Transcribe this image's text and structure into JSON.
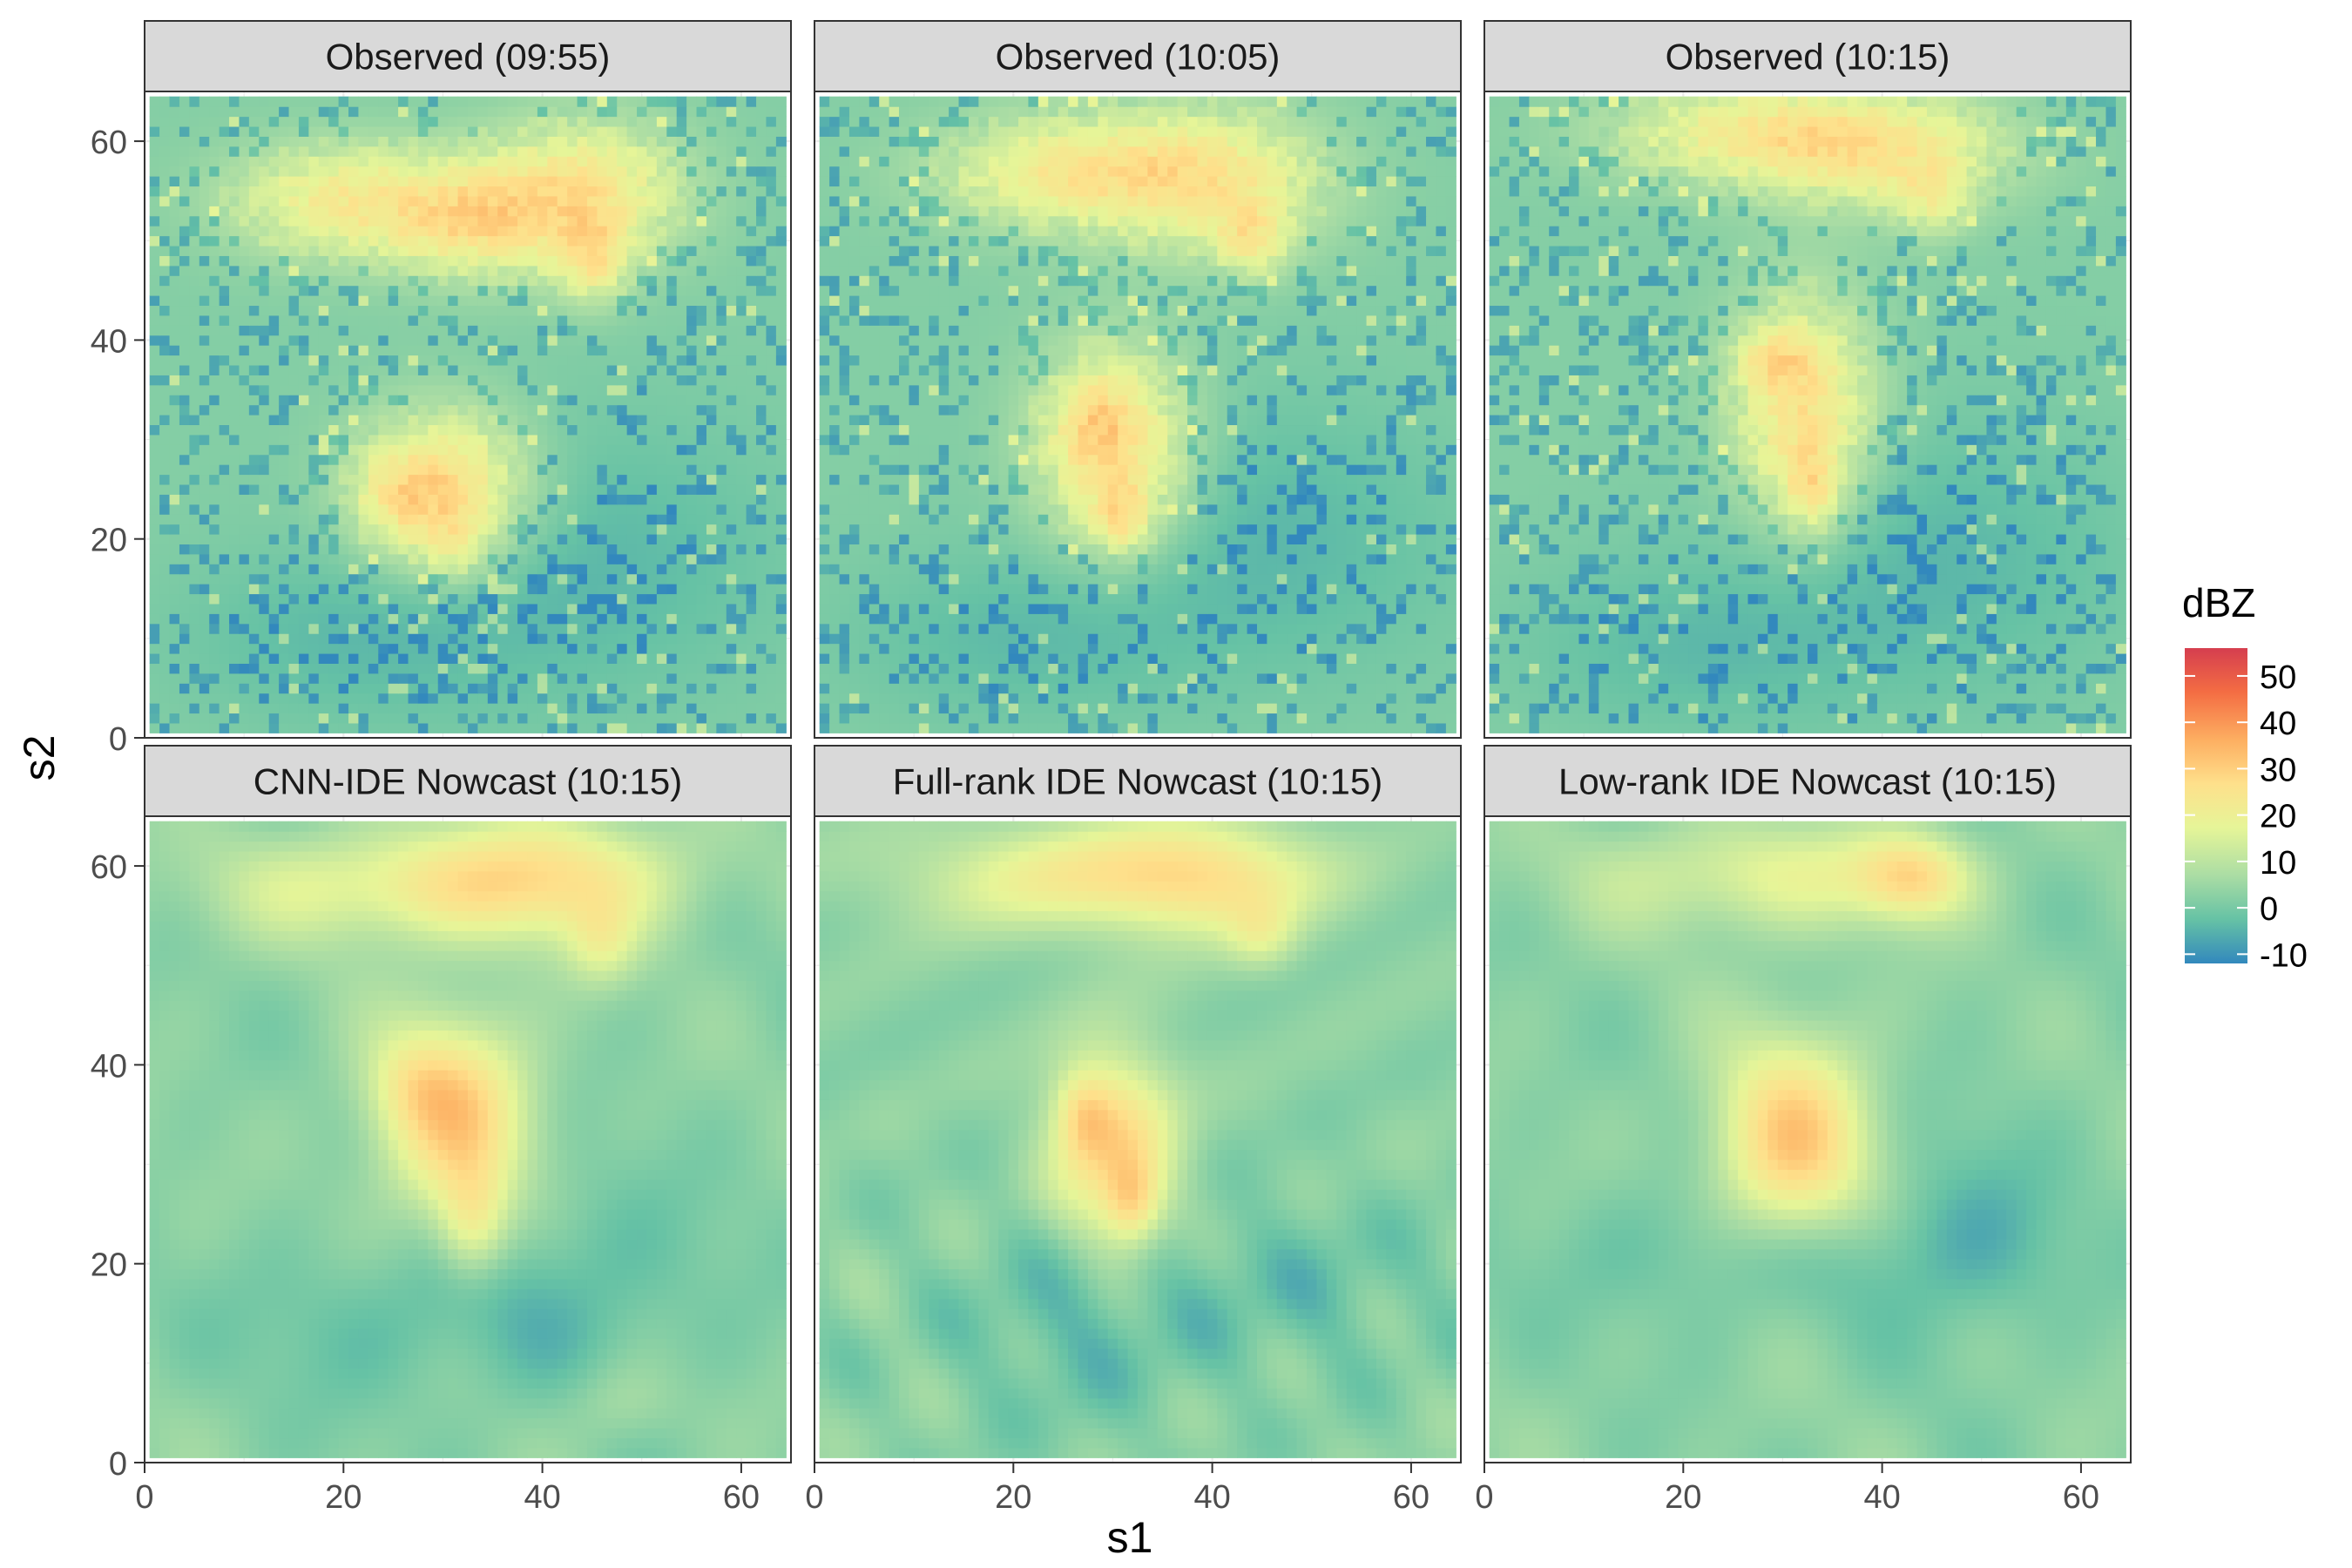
{
  "chart_data": {
    "type": "heatmap",
    "xlabel": "s1",
    "ylabel": "s2",
    "x_ticks": [
      0,
      20,
      40,
      60
    ],
    "y_ticks": [
      0,
      20,
      40,
      60
    ],
    "xlim": [
      0,
      65
    ],
    "ylim": [
      0,
      65
    ],
    "grid_size": 64,
    "grid": true,
    "legend": {
      "title": "dBZ",
      "ticks": [
        50,
        40,
        30,
        20,
        10,
        0,
        -10
      ],
      "range": [
        -12,
        56
      ],
      "placement": "right",
      "colors": [
        "#3288bd",
        "#66c2a5",
        "#abdda4",
        "#e6f598",
        "#fee08b",
        "#fdae61",
        "#f46d43",
        "#d53e4f"
      ]
    },
    "panels": [
      {
        "title": "Observed (09:55)",
        "kind": "observed",
        "background": 2,
        "blobs": [
          {
            "x": 30,
            "y": 25,
            "sx": 6,
            "sy": 5.5,
            "amp": 28
          },
          {
            "x": 25,
            "y": 24,
            "sx": 3,
            "sy": 3,
            "amp": 8
          },
          {
            "x": 31,
            "y": 19,
            "sx": 2.5,
            "sy": 2.5,
            "amp": 8
          },
          {
            "x": 20,
            "y": 54,
            "sx": 8,
            "sy": 4,
            "amp": 20
          },
          {
            "x": 33,
            "y": 52,
            "sx": 6,
            "sy": 4,
            "amp": 18
          },
          {
            "x": 44,
            "y": 55,
            "sx": 7,
            "sy": 5,
            "amp": 22
          },
          {
            "x": 45,
            "y": 48,
            "sx": 2.5,
            "sy": 3,
            "amp": 16
          },
          {
            "x": 44,
            "y": 18,
            "sx": 14,
            "sy": 10,
            "amp": -6
          },
          {
            "x": 20,
            "y": 10,
            "sx": 12,
            "sy": 6,
            "amp": -5
          }
        ]
      },
      {
        "title": "Observed (10:05)",
        "kind": "observed",
        "background": 2,
        "blobs": [
          {
            "x": 30,
            "y": 29,
            "sx": 5.5,
            "sy": 7,
            "amp": 26
          },
          {
            "x": 28,
            "y": 32,
            "sx": 2.5,
            "sy": 3,
            "amp": 8
          },
          {
            "x": 31,
            "y": 22,
            "sx": 2,
            "sy": 2.5,
            "amp": 14
          },
          {
            "x": 25,
            "y": 57,
            "sx": 9,
            "sy": 4,
            "amp": 19
          },
          {
            "x": 40,
            "y": 56,
            "sx": 8,
            "sy": 5,
            "amp": 20
          },
          {
            "x": 44,
            "y": 50,
            "sx": 2.5,
            "sy": 2.5,
            "amp": 14
          },
          {
            "x": 45,
            "y": 20,
            "sx": 14,
            "sy": 10,
            "amp": -6
          },
          {
            "x": 20,
            "y": 10,
            "sx": 12,
            "sy": 6,
            "amp": -5
          }
        ]
      },
      {
        "title": "Observed (10:15)",
        "kind": "observed",
        "background": 2,
        "blobs": [
          {
            "x": 32,
            "y": 33,
            "sx": 5,
            "sy": 8,
            "amp": 24
          },
          {
            "x": 29,
            "y": 38,
            "sx": 2.5,
            "sy": 2,
            "amp": 12
          },
          {
            "x": 33,
            "y": 25,
            "sx": 2,
            "sy": 3,
            "amp": 14
          },
          {
            "x": 26,
            "y": 61,
            "sx": 10,
            "sy": 3.5,
            "amp": 17
          },
          {
            "x": 40,
            "y": 59,
            "sx": 9,
            "sy": 4,
            "amp": 19
          },
          {
            "x": 45,
            "y": 54,
            "sx": 2.5,
            "sy": 2.5,
            "amp": 12
          },
          {
            "x": 45,
            "y": 18,
            "sx": 14,
            "sy": 10,
            "amp": -6
          },
          {
            "x": 20,
            "y": 9,
            "sx": 12,
            "sy": 6,
            "amp": -5
          }
        ]
      },
      {
        "title": "CNN-IDE Nowcast (10:15)",
        "kind": "smooth",
        "background": 3,
        "blobs": [
          {
            "x": 31,
            "y": 35,
            "sx": 5.5,
            "sy": 7,
            "amp": 27
          },
          {
            "x": 33,
            "y": 24,
            "sx": 2.5,
            "sy": 4,
            "amp": 16
          },
          {
            "x": 27,
            "y": 38,
            "sx": 3,
            "sy": 3,
            "amp": 6
          },
          {
            "x": 25,
            "y": 58,
            "sx": 12,
            "sy": 4,
            "amp": 16
          },
          {
            "x": 42,
            "y": 59,
            "sx": 9,
            "sy": 4.5,
            "amp": 18
          },
          {
            "x": 46,
            "y": 52,
            "sx": 2.5,
            "sy": 3,
            "amp": 10
          },
          {
            "x": 44,
            "y": 18,
            "sx": 10,
            "sy": 8,
            "amp": -6
          },
          {
            "x": 22,
            "y": 14,
            "sx": 10,
            "sy": 6,
            "amp": -5
          },
          {
            "x": 48,
            "y": 6,
            "sx": 4,
            "sy": 3,
            "amp": 6
          }
        ]
      },
      {
        "title": "Full-rank IDE Nowcast (10:15)",
        "kind": "swirl",
        "background": 3,
        "blobs": [
          {
            "x": 30,
            "y": 32,
            "sx": 4.5,
            "sy": 7,
            "amp": 24
          },
          {
            "x": 27,
            "y": 35,
            "sx": 2,
            "sy": 3,
            "amp": 12
          },
          {
            "x": 32,
            "y": 26,
            "sx": 2,
            "sy": 3,
            "amp": 16
          },
          {
            "x": 25,
            "y": 59,
            "sx": 12,
            "sy": 4,
            "amp": 16
          },
          {
            "x": 40,
            "y": 59,
            "sx": 8,
            "sy": 4,
            "amp": 18
          },
          {
            "x": 45,
            "y": 53,
            "sx": 2.5,
            "sy": 2.5,
            "amp": 10
          },
          {
            "x": 26,
            "y": 14,
            "sx": 8,
            "sy": 7,
            "amp": -6
          },
          {
            "x": 48,
            "y": 18,
            "sx": 10,
            "sy": 6,
            "amp": -5
          }
        ]
      },
      {
        "title": "Low-rank IDE Nowcast (10:15)",
        "kind": "smooth",
        "background": 3,
        "blobs": [
          {
            "x": 31,
            "y": 32,
            "sx": 5.5,
            "sy": 7.5,
            "amp": 28
          },
          {
            "x": 28,
            "y": 59,
            "sx": 12,
            "sy": 4,
            "amp": 14
          },
          {
            "x": 43,
            "y": 59,
            "sx": 4,
            "sy": 3,
            "amp": 20
          },
          {
            "x": 31,
            "y": 21,
            "sx": 16,
            "sy": 5,
            "amp": -7
          },
          {
            "x": 50,
            "y": 24,
            "sx": 6,
            "sy": 8,
            "amp": -5
          }
        ]
      }
    ]
  }
}
